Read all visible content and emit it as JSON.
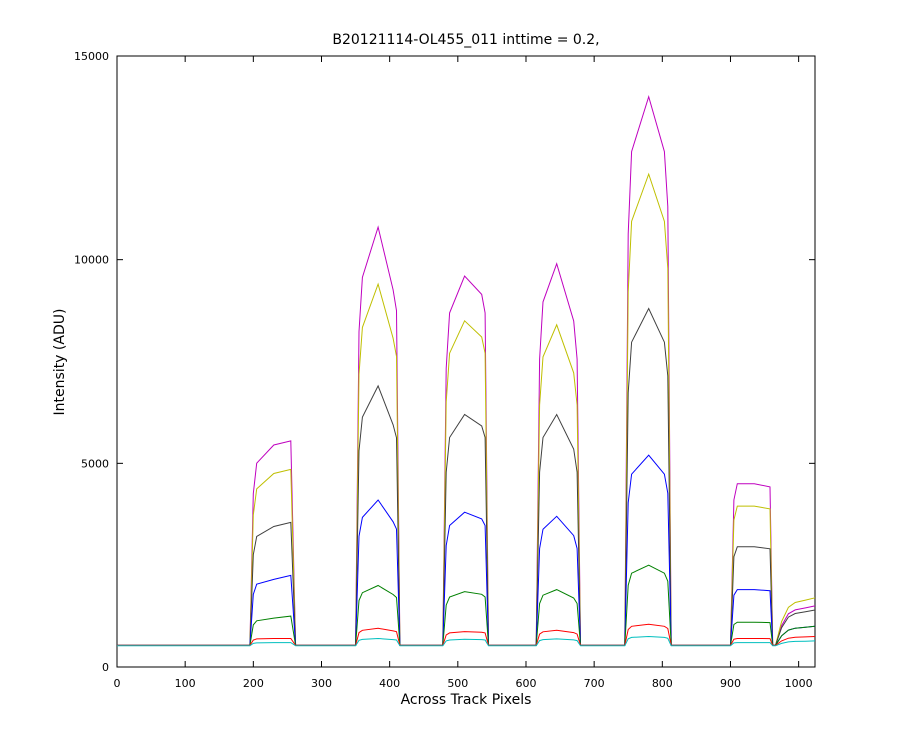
{
  "chart_data": {
    "type": "line",
    "title": "B20121114-OL455_011 inttime = 0.2,",
    "x_label": "Across Track Pixels",
    "y_label": "Intensity (ADU)",
    "xlim": [
      0,
      1024
    ],
    "ylim": [
      0,
      15000
    ],
    "xticks": [
      0,
      100,
      200,
      300,
      400,
      500,
      600,
      700,
      800,
      900,
      1000
    ],
    "yticks": [
      0,
      5000,
      10000,
      15000
    ],
    "x": [
      0,
      195,
      200,
      205,
      230,
      255,
      262,
      268,
      350,
      355,
      360,
      383,
      405,
      410,
      415,
      478,
      483,
      488,
      510,
      535,
      540,
      545,
      615,
      620,
      625,
      645,
      670,
      675,
      680,
      745,
      750,
      755,
      780,
      803,
      808,
      813,
      900,
      905,
      910,
      935,
      958,
      962,
      966,
      975,
      985,
      995,
      1010,
      1024
    ],
    "series": [
      {
        "color": "#bf00bf",
        "values": [
          530,
          530,
          4258,
          5003,
          5450,
          5550,
          530,
          530,
          530,
          8233,
          9568,
          10800,
          9260,
          8746,
          530,
          530,
          7333,
          8693,
          9600,
          9147,
          8693,
          530,
          530,
          7558,
          8963,
          9900,
          8495,
          7558,
          530,
          530,
          10633,
          12653,
          14000,
          12653,
          11306,
          530,
          530,
          4103,
          4500,
          4500,
          4421,
          530,
          530,
          1015,
          1306,
          1403,
          1452,
          1500
        ]
      },
      {
        "color": "#bfbf00",
        "values": [
          530,
          530,
          3733,
          4373,
          4750,
          4850,
          530,
          530,
          530,
          7183,
          8336,
          9400,
          8070,
          7626,
          530,
          530,
          6508,
          7703,
          8500,
          8102,
          7703,
          530,
          530,
          6433,
          7613,
          8400,
          7220,
          6433,
          530,
          530,
          9208,
          10943,
          12100,
          10943,
          9786,
          530,
          530,
          3608,
          3950,
          3950,
          3882,
          530,
          530,
          1115,
          1466,
          1583,
          1642,
          1700
        ]
      },
      {
        "color": "#404040",
        "values": [
          530,
          530,
          2758,
          3203,
          3450,
          3550,
          530,
          530,
          530,
          5308,
          6136,
          6900,
          5945,
          5626,
          530,
          530,
          4783,
          5633,
          6200,
          5917,
          5633,
          530,
          530,
          4783,
          5633,
          6200,
          5350,
          4783,
          530,
          530,
          6733,
          7973,
          8800,
          7973,
          7146,
          530,
          530,
          2708,
          2950,
          2950,
          2902,
          530,
          530,
          965,
          1226,
          1313,
          1357,
          1400
        ]
      },
      {
        "color": "#0000ff",
        "values": [
          530,
          530,
          1783,
          2033,
          2150,
          2250,
          530,
          530,
          530,
          3208,
          3672,
          4100,
          3565,
          3386,
          530,
          530,
          2983,
          3473,
          3800,
          3637,
          3473,
          530,
          530,
          2908,
          3383,
          3700,
          3225,
          2908,
          530,
          530,
          4033,
          4733,
          5200,
          4733,
          4266,
          530,
          530,
          1763,
          1900,
          1900,
          1873,
          530,
          530,
          765,
          906,
          953,
          977,
          1000
        ]
      },
      {
        "color": "#008000",
        "values": [
          530,
          530,
          1033,
          1133,
          1200,
          1250,
          530,
          530,
          530,
          1633,
          1824,
          2000,
          1780,
          1706,
          530,
          530,
          1520,
          1718,
          1850,
          1784,
          1718,
          530,
          530,
          1558,
          1763,
          1900,
          1695,
          1558,
          530,
          530,
          2008,
          2303,
          2500,
          2303,
          2106,
          530,
          530,
          1043,
          1100,
          1100,
          1089,
          530,
          530,
          765,
          906,
          953,
          977,
          1000
        ]
      },
      {
        "color": "#ff0000",
        "values": [
          530,
          530,
          660,
          690,
          700,
          700,
          530,
          530,
          530,
          845,
          900,
          950,
          887,
          866,
          530,
          530,
          785,
          836,
          870,
          853,
          836,
          530,
          530,
          808,
          863,
          900,
          845,
          808,
          530,
          530,
          920,
          998,
          1050,
          998,
          946,
          530,
          530,
          683,
          700,
          700,
          697,
          530,
          530,
          640,
          706,
          728,
          739,
          750
        ]
      },
      {
        "color": "#00bfbf",
        "values": [
          520,
          520,
          580,
          592,
          600,
          600,
          520,
          520,
          520,
          655,
          678,
          700,
          673,
          664,
          520,
          520,
          640,
          664,
          680,
          672,
          664,
          520,
          520,
          647,
          673,
          690,
          665,
          647,
          520,
          520,
          692,
          727,
          750,
          727,
          704,
          520,
          520,
          592,
          600,
          600,
          598,
          520,
          520,
          580,
          616,
          628,
          634,
          640
        ]
      }
    ]
  }
}
